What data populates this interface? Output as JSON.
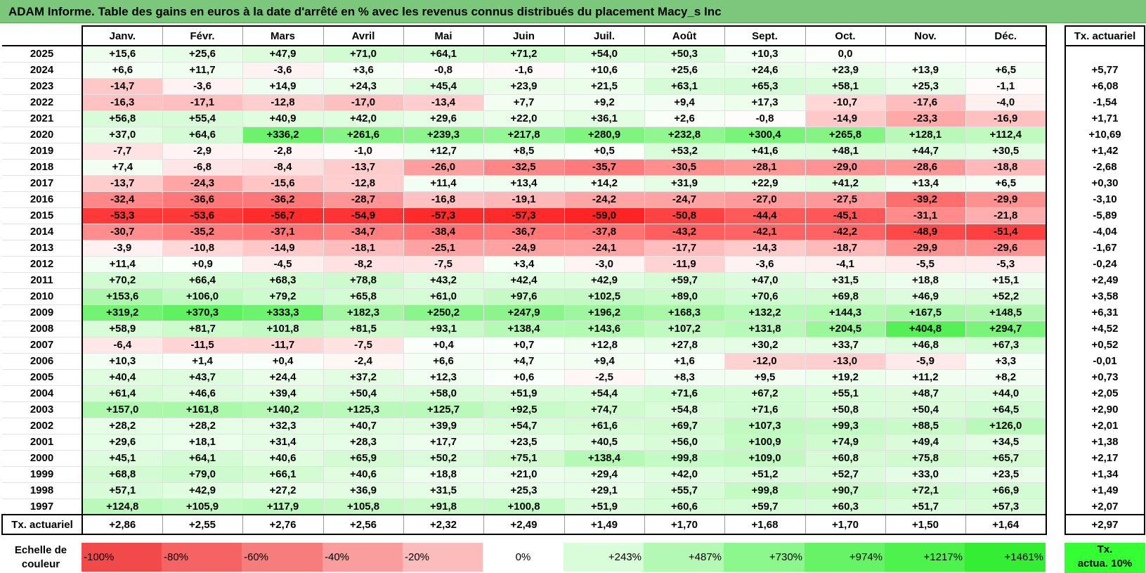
{
  "title": "ADAM Informe. Table des gains en euros à la date d'arrêté en % avec les revenus connus distribués du placement Macy_s Inc",
  "months": [
    "Janv.",
    "Févr.",
    "Mars",
    "Avril",
    "Mai",
    "Juin",
    "Juil.",
    "Août",
    "Sept.",
    "Oct.",
    "Nov.",
    "Déc."
  ],
  "rate_header": "Tx. actuariel",
  "rows": [
    {
      "year": "2025",
      "values": [
        "+15,6",
        "+25,6",
        "+47,9",
        "+71,0",
        "+64,1",
        "+71,2",
        "+54,0",
        "+50,3",
        "+10,3",
        "0,0",
        "",
        ""
      ],
      "rate": ""
    },
    {
      "year": "2024",
      "values": [
        "+6,6",
        "+11,7",
        "-3,6",
        "+3,6",
        "-0,8",
        "-1,6",
        "+10,6",
        "+25,6",
        "+24,6",
        "+23,9",
        "+13,9",
        "+6,5"
      ],
      "rate": "+5,77"
    },
    {
      "year": "2023",
      "values": [
        "-14,7",
        "-3,6",
        "+14,9",
        "+24,3",
        "+45,4",
        "+23,9",
        "+21,5",
        "+63,1",
        "+65,3",
        "+58,1",
        "+25,3",
        "-1,1"
      ],
      "rate": "+6,08"
    },
    {
      "year": "2022",
      "values": [
        "-16,3",
        "-17,1",
        "-12,8",
        "-17,0",
        "-13,4",
        "+7,7",
        "+9,2",
        "+9,4",
        "+17,3",
        "-10,7",
        "-17,6",
        "-4,0"
      ],
      "rate": "-1,54"
    },
    {
      "year": "2021",
      "values": [
        "+56,8",
        "+55,4",
        "+40,9",
        "+42,0",
        "+29,6",
        "+22,0",
        "+36,1",
        "+2,6",
        "-0,8",
        "-14,9",
        "-23,3",
        "-16,9"
      ],
      "rate": "+1,71"
    },
    {
      "year": "2020",
      "values": [
        "+37,0",
        "+64,6",
        "+336,2",
        "+261,6",
        "+239,3",
        "+217,8",
        "+280,9",
        "+232,8",
        "+300,4",
        "+265,8",
        "+128,1",
        "+112,4"
      ],
      "rate": "+10,69"
    },
    {
      "year": "2019",
      "values": [
        "-7,7",
        "-2,9",
        "-2,8",
        "-1,0",
        "+12,7",
        "+8,5",
        "+0,5",
        "+53,2",
        "+41,6",
        "+48,1",
        "+44,7",
        "+30,5"
      ],
      "rate": "+1,42"
    },
    {
      "year": "2018",
      "values": [
        "+7,4",
        "-6,8",
        "-8,4",
        "-13,7",
        "-26,0",
        "-32,5",
        "-35,7",
        "-30,5",
        "-28,1",
        "-29,0",
        "-28,6",
        "-18,8"
      ],
      "rate": "-2,68"
    },
    {
      "year": "2017",
      "values": [
        "-13,7",
        "-24,3",
        "-15,6",
        "-12,8",
        "+11,4",
        "+13,4",
        "+14,2",
        "+31,9",
        "+22,9",
        "+41,2",
        "+13,4",
        "+6,5"
      ],
      "rate": "+0,30"
    },
    {
      "year": "2016",
      "values": [
        "-32,4",
        "-36,6",
        "-36,2",
        "-28,7",
        "-16,8",
        "-19,1",
        "-24,2",
        "-24,7",
        "-27,0",
        "-27,5",
        "-39,2",
        "-29,9"
      ],
      "rate": "-3,10"
    },
    {
      "year": "2015",
      "values": [
        "-53,3",
        "-53,6",
        "-56,7",
        "-54,9",
        "-57,3",
        "-57,3",
        "-59,0",
        "-50,8",
        "-44,4",
        "-45,1",
        "-31,1",
        "-21,8"
      ],
      "rate": "-5,89"
    },
    {
      "year": "2014",
      "values": [
        "-30,7",
        "-35,2",
        "-37,1",
        "-34,7",
        "-38,4",
        "-36,7",
        "-37,8",
        "-43,2",
        "-42,1",
        "-42,2",
        "-48,9",
        "-51,4"
      ],
      "rate": "-4,04"
    },
    {
      "year": "2013",
      "values": [
        "-3,9",
        "-10,8",
        "-14,9",
        "-18,1",
        "-25,1",
        "-24,9",
        "-24,1",
        "-17,7",
        "-14,3",
        "-18,7",
        "-29,9",
        "-29,6"
      ],
      "rate": "-1,67"
    },
    {
      "year": "2012",
      "values": [
        "+11,4",
        "+0,9",
        "-4,5",
        "-8,2",
        "-7,5",
        "+3,4",
        "-3,0",
        "-11,9",
        "-3,6",
        "-4,1",
        "-5,5",
        "-5,3"
      ],
      "rate": "-0,24"
    },
    {
      "year": "2011",
      "values": [
        "+70,2",
        "+66,4",
        "+68,3",
        "+78,8",
        "+43,2",
        "+42,4",
        "+42,9",
        "+59,7",
        "+47,0",
        "+31,5",
        "+18,8",
        "+15,1"
      ],
      "rate": "+2,49"
    },
    {
      "year": "2010",
      "values": [
        "+153,6",
        "+106,0",
        "+79,2",
        "+65,8",
        "+61,0",
        "+97,6",
        "+102,5",
        "+89,0",
        "+70,6",
        "+69,8",
        "+46,9",
        "+52,2"
      ],
      "rate": "+3,58"
    },
    {
      "year": "2009",
      "values": [
        "+319,2",
        "+370,3",
        "+333,3",
        "+182,3",
        "+250,2",
        "+247,9",
        "+196,2",
        "+168,3",
        "+132,2",
        "+144,3",
        "+167,5",
        "+148,5"
      ],
      "rate": "+6,31"
    },
    {
      "year": "2008",
      "values": [
        "+58,9",
        "+81,7",
        "+101,8",
        "+81,5",
        "+93,1",
        "+138,4",
        "+143,6",
        "+107,2",
        "+131,8",
        "+204,5",
        "+404,8",
        "+294,7"
      ],
      "rate": "+4,52"
    },
    {
      "year": "2007",
      "values": [
        "-6,4",
        "-11,5",
        "-11,7",
        "-7,5",
        "+0,4",
        "+0,7",
        "+12,8",
        "+27,8",
        "+30,2",
        "+33,7",
        "+46,8",
        "+67,3"
      ],
      "rate": "+0,52"
    },
    {
      "year": "2006",
      "values": [
        "+10,3",
        "+1,4",
        "+0,4",
        "-2,4",
        "+6,6",
        "+4,7",
        "+9,4",
        "+1,6",
        "-12,0",
        "-13,0",
        "-5,9",
        "+3,3"
      ],
      "rate": "-0,01"
    },
    {
      "year": "2005",
      "values": [
        "+40,4",
        "+43,7",
        "+24,4",
        "+37,2",
        "+12,3",
        "+0,6",
        "-2,5",
        "+8,3",
        "+9,5",
        "+19,2",
        "+11,2",
        "+8,2"
      ],
      "rate": "+0,73"
    },
    {
      "year": "2004",
      "values": [
        "+61,4",
        "+46,6",
        "+39,4",
        "+50,4",
        "+58,0",
        "+51,9",
        "+54,4",
        "+71,6",
        "+67,2",
        "+55,1",
        "+48,7",
        "+44,0"
      ],
      "rate": "+2,05"
    },
    {
      "year": "2003",
      "values": [
        "+157,0",
        "+161,8",
        "+140,2",
        "+125,3",
        "+125,7",
        "+92,5",
        "+74,7",
        "+54,8",
        "+71,6",
        "+50,8",
        "+50,4",
        "+64,5"
      ],
      "rate": "+2,90"
    },
    {
      "year": "2002",
      "values": [
        "+28,2",
        "+28,2",
        "+32,3",
        "+40,7",
        "+39,9",
        "+54,7",
        "+61,6",
        "+69,7",
        "+107,3",
        "+99,3",
        "+88,5",
        "+126,0"
      ],
      "rate": "+2,01"
    },
    {
      "year": "2001",
      "values": [
        "+29,6",
        "+18,1",
        "+31,4",
        "+28,3",
        "+17,7",
        "+23,5",
        "+40,5",
        "+56,0",
        "+100,9",
        "+74,9",
        "+49,4",
        "+34,5"
      ],
      "rate": "+1,38"
    },
    {
      "year": "2000",
      "values": [
        "+45,1",
        "+64,1",
        "+40,6",
        "+65,9",
        "+50,2",
        "+75,1",
        "+138,4",
        "+99,8",
        "+109,0",
        "+60,8",
        "+75,8",
        "+65,7"
      ],
      "rate": "+2,17"
    },
    {
      "year": "1999",
      "values": [
        "+68,8",
        "+79,0",
        "+66,1",
        "+40,6",
        "+18,8",
        "+21,0",
        "+29,4",
        "+42,0",
        "+51,2",
        "+52,7",
        "+33,0",
        "+23,5"
      ],
      "rate": "+1,34"
    },
    {
      "year": "1998",
      "values": [
        "+57,1",
        "+42,9",
        "+27,2",
        "+36,9",
        "+31,5",
        "+25,3",
        "+29,1",
        "+55,7",
        "+99,8",
        "+90,7",
        "+72,1",
        "+66,9"
      ],
      "rate": "+1,49"
    },
    {
      "year": "1997",
      "values": [
        "+124,8",
        "+105,9",
        "+117,9",
        "+105,8",
        "+91,8",
        "+100,8",
        "+51,9",
        "+60,6",
        "+59,7",
        "+60,3",
        "+51,7",
        "+57,3"
      ],
      "rate": "+2,07"
    }
  ],
  "footer": {
    "label": "Tx. actuariel",
    "values": [
      "+2,86",
      "+2,55",
      "+2,76",
      "+2,56",
      "+2,32",
      "+2,49",
      "+1,49",
      "+1,70",
      "+1,68",
      "+1,70",
      "+1,50",
      "+1,64"
    ],
    "rate": "+2,97"
  },
  "legend": {
    "label_line1": "Echelle de",
    "label_line2": "couleur",
    "cells": [
      {
        "text": "-100%",
        "color": "#f24a4a",
        "kind": "neg"
      },
      {
        "text": "-80%",
        "color": "#f56363",
        "kind": "neg"
      },
      {
        "text": "-60%",
        "color": "#f77d7d",
        "kind": "neg"
      },
      {
        "text": "-40%",
        "color": "#fa9d9d",
        "kind": "neg"
      },
      {
        "text": "-20%",
        "color": "#fcbcbc",
        "kind": "neg"
      },
      {
        "text": "0%",
        "color": "#ffffff",
        "kind": "zero"
      },
      {
        "text": "+243%",
        "color": "#d9fcd9",
        "kind": "pos"
      },
      {
        "text": "+487%",
        "color": "#b3f9b3",
        "kind": "pos"
      },
      {
        "text": "+730%",
        "color": "#8cf78c",
        "kind": "pos"
      },
      {
        "text": "+974%",
        "color": "#66f466",
        "kind": "pos"
      },
      {
        "text": "+1217%",
        "color": "#4df24d",
        "kind": "pos"
      },
      {
        "text": "+1461%",
        "color": "#33ee33",
        "kind": "pos"
      }
    ],
    "rate_line1": "Tx.",
    "rate_line2": "actua. 10%"
  },
  "colors": {
    "title_bg": "#7bc77b",
    "negative_max": "#ff2020",
    "positive_max": "#33ee33"
  }
}
